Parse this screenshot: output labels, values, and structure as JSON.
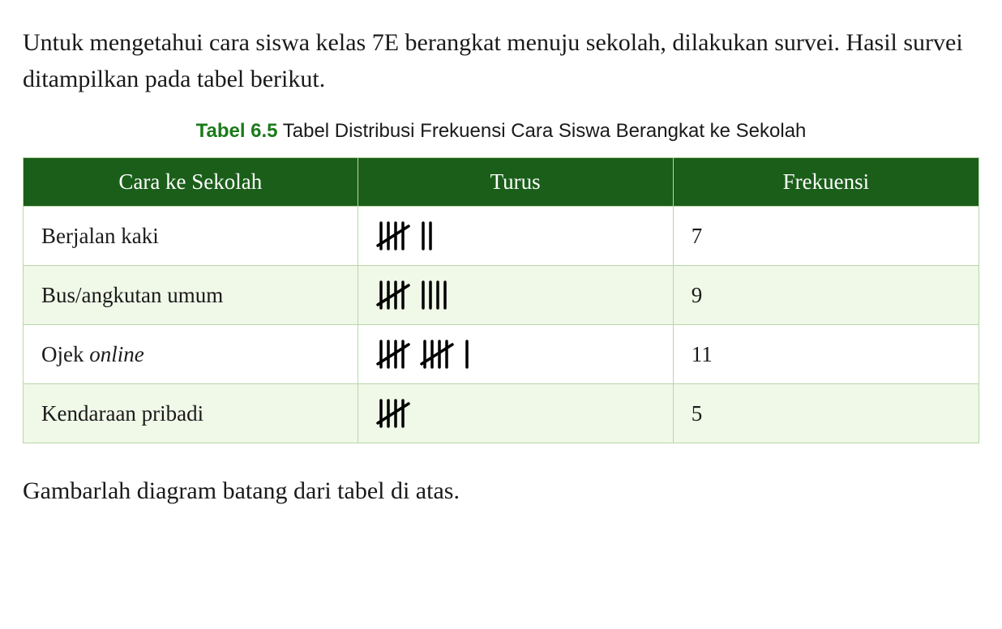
{
  "intro": "Untuk mengetahui cara siswa kelas 7E berangkat menuju sekolah, dilakukan survei. Hasil survei ditampilkan pada tabel berikut.",
  "caption": {
    "label": "Tabel 6.5",
    "text": "Tabel Distribusi Frekuensi Cara Siswa Berangkat ke Sekolah"
  },
  "table": {
    "headers": {
      "col1": "Cara ke Sekolah",
      "col2": "Turus",
      "col3": "Frekuensi"
    },
    "rows": [
      {
        "label": "Berjalan kaki",
        "label_italic_part": "",
        "tally_count": 7,
        "frequency": "7"
      },
      {
        "label": "Bus/angkutan umum",
        "label_italic_part": "",
        "tally_count": 9,
        "frequency": "9"
      },
      {
        "label": "Ojek ",
        "label_italic_part": "online",
        "tally_count": 11,
        "frequency": "11"
      },
      {
        "label": "Kendaraan pribadi",
        "label_italic_part": "",
        "tally_count": 5,
        "frequency": "5"
      }
    ]
  },
  "footer": "Gambarlah diagram batang dari tabel di atas.",
  "colors": {
    "header_bg": "#1a5e1a",
    "header_text": "#ffffff",
    "border": "#b8d8a8",
    "row_even_bg": "#f0f8e8",
    "caption_label": "#1a7a1a",
    "text": "#1a1a1a",
    "tally_stroke": "#000000"
  },
  "typography": {
    "body_font": "Georgia, serif",
    "intro_fontsize": 30,
    "caption_fontsize": 24,
    "table_fontsize": 27
  },
  "tally_style": {
    "stroke_width": 3.5,
    "height": 36,
    "stroke_color": "#000000"
  }
}
